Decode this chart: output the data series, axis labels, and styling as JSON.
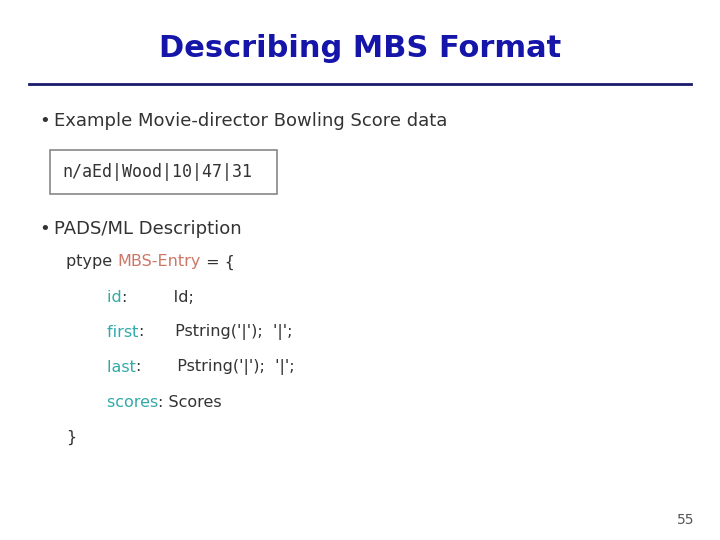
{
  "title": "Describing MBS Format",
  "title_color": "#1515aa",
  "title_fontsize": 22,
  "background_color": "#ffffff",
  "bullet1": "Example Movie-director Bowling Score data",
  "code_box": "n/aEd|Wood|10|47|31",
  "bullet2": "PADS/ML Description",
  "page_number": "55",
  "line_color": "#1a1a6e",
  "bullet_color": "#333333",
  "bullet_fontsize": 13,
  "code_fontsize": 11.5,
  "ptype_color": "#333333",
  "entry_color": "#cc7766",
  "keyword_color": "#33aaaa",
  "value_color": "#2244cc",
  "code_lines": [
    [
      {
        "text": "ptype ",
        "color": "#333333"
      },
      {
        "text": "MBS-Entry",
        "color": "#cc7766"
      },
      {
        "text": " = {",
        "color": "#333333"
      }
    ],
    [
      {
        "text": "        id",
        "color": "#33aaaa"
      },
      {
        "text": ":         Id;",
        "color": "#333333"
      }
    ],
    [
      {
        "text": "        first",
        "color": "#33aaaa"
      },
      {
        "text": ":      Pstring('|');  '|';",
        "color": "#333333"
      }
    ],
    [
      {
        "text": "        last",
        "color": "#33aaaa"
      },
      {
        "text": ":       Pstring('|');  '|';",
        "color": "#333333"
      }
    ],
    [
      {
        "text": "        scores",
        "color": "#33aaaa"
      },
      {
        "text": ": Scores",
        "color": "#333333"
      }
    ],
    [
      {
        "text": "}",
        "color": "#333333"
      }
    ]
  ]
}
